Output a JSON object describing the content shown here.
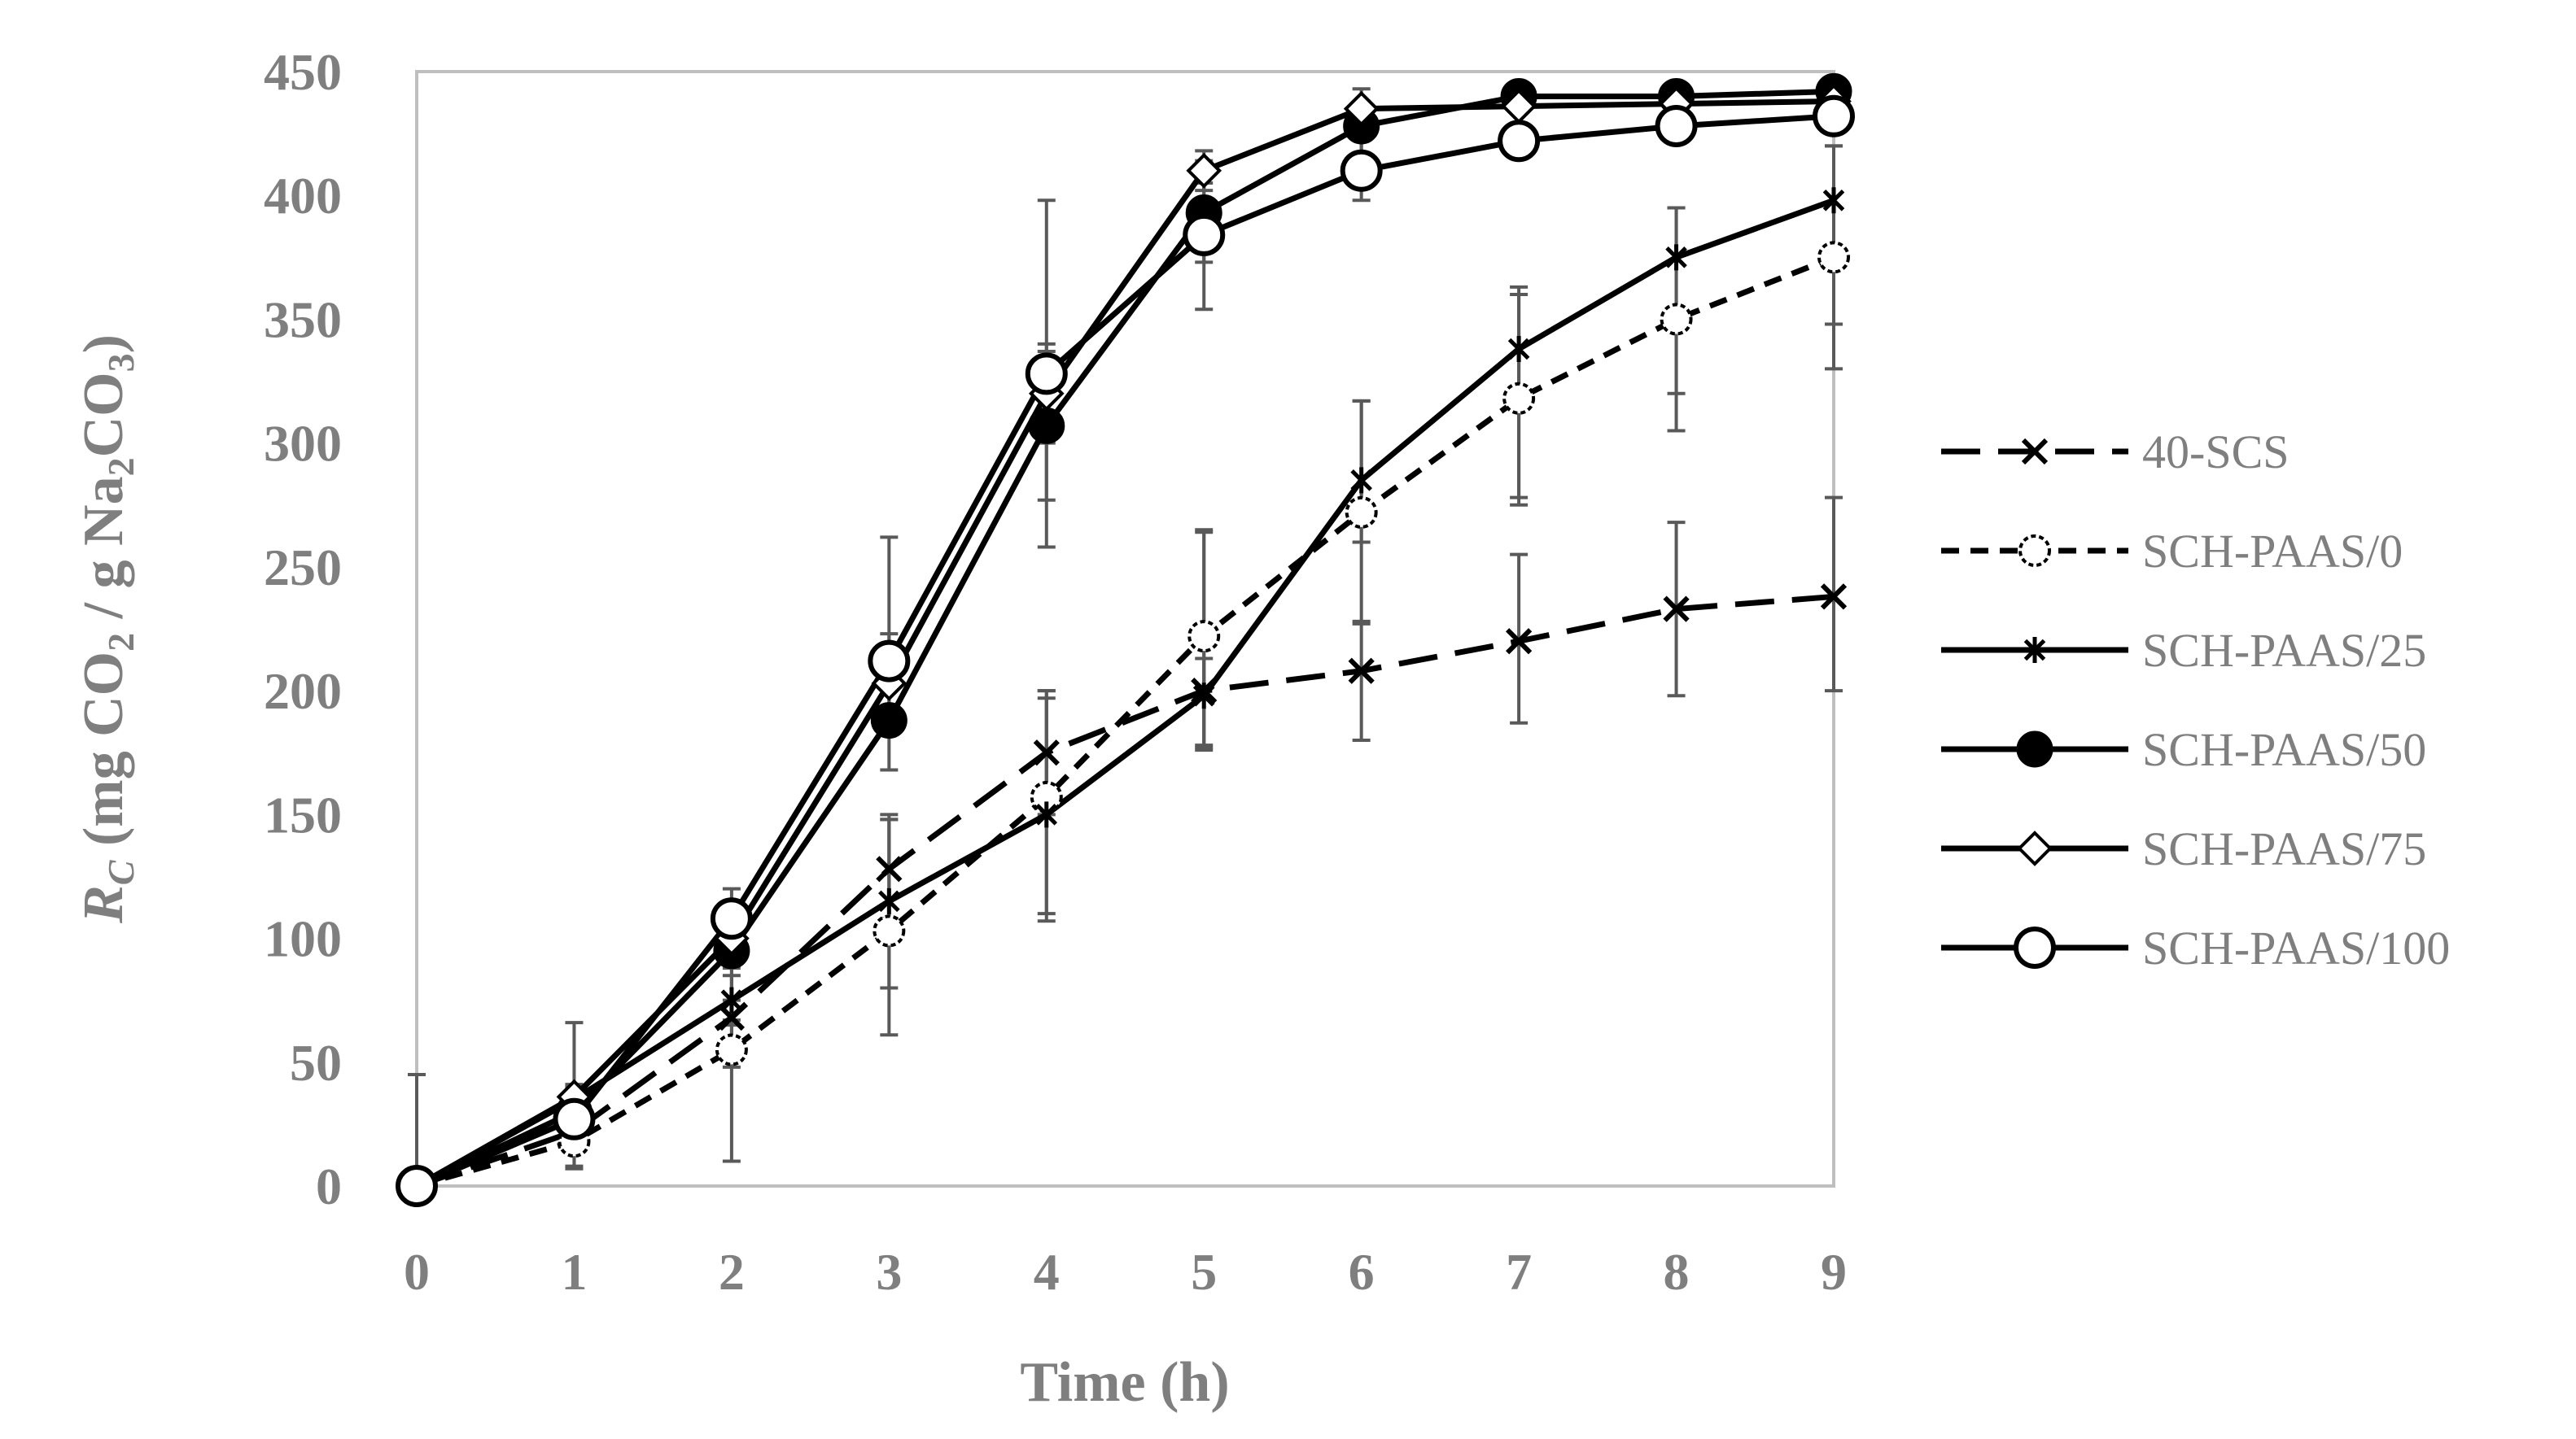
{
  "chart_data": {
    "type": "line",
    "title": "",
    "xlabel": "Time (h)",
    "ylabel": {
      "var": "R",
      "var_sub": "C",
      "pre": "(mg CO",
      "sub1": "2",
      "mid": " / g Na",
      "sub2": "2",
      "mid2": "CO",
      "sub3": "3",
      "post": ")"
    },
    "xlim": [
      0,
      9
    ],
    "ylim": [
      0,
      450
    ],
    "xticks": [
      "0",
      "1",
      "2",
      "3",
      "4",
      "5",
      "6",
      "7",
      "8",
      "9"
    ],
    "yticks": [
      "0",
      "50",
      "100",
      "150",
      "200",
      "250",
      "300",
      "350",
      "400",
      "450"
    ],
    "grid": false,
    "legend_position": "right",
    "x": [
      0,
      1,
      2,
      3,
      4,
      5,
      6,
      7,
      8,
      9
    ],
    "series": [
      {
        "name": "40-SCS",
        "marker": "x",
        "line": "long-dash",
        "values": [
          0,
          22,
          68,
          128,
          175,
          200,
          208,
          220,
          233,
          238
        ],
        "err_up": [
          45,
          8,
          20,
          20,
          25,
          65,
          20,
          35,
          35,
          40
        ],
        "err_down": [
          0,
          8,
          20,
          20,
          25,
          22,
          28,
          33,
          35,
          38
        ]
      },
      {
        "name": "SCH-PAAS/0",
        "marker": "open-circle",
        "line": "short-dash",
        "values": [
          0,
          18,
          55,
          103,
          157,
          222,
          272,
          318,
          350,
          375
        ],
        "err_up": [
          0,
          10,
          12,
          45,
          40,
          42,
          45,
          45,
          45,
          45
        ],
        "err_down": [
          0,
          10,
          45,
          42,
          50,
          45,
          45,
          43,
          45,
          45
        ]
      },
      {
        "name": "SCH-PAAS/25",
        "marker": "star",
        "line": "solid",
        "values": [
          0,
          35,
          75,
          115,
          150,
          198,
          285,
          338,
          375,
          398
        ],
        "err_up": [
          0,
          5,
          10,
          35,
          50,
          15,
          32,
          22,
          20,
          22
        ],
        "err_down": [
          0,
          5,
          10,
          35,
          40,
          22,
          25,
          60,
          55,
          50
        ]
      },
      {
        "name": "SCH-PAAS/50",
        "marker": "filled-circle",
        "line": "solid",
        "values": [
          0,
          30,
          95,
          188,
          307,
          393,
          428,
          440,
          440,
          442
        ],
        "err_up": [
          0,
          10,
          20,
          25,
          30,
          12,
          10,
          5,
          5,
          5
        ],
        "err_down": [
          0,
          10,
          20,
          20,
          30,
          20,
          12,
          5,
          5,
          5
        ]
      },
      {
        "name": "SCH-PAAS/75",
        "marker": "open-diamond",
        "line": "solid",
        "values": [
          0,
          36,
          100,
          203,
          320,
          410,
          435,
          436,
          437,
          438
        ],
        "err_up": [
          0,
          5,
          10,
          20,
          20,
          8,
          8,
          3,
          3,
          3
        ],
        "err_down": [
          0,
          5,
          10,
          20,
          20,
          8,
          8,
          3,
          3,
          3
        ]
      },
      {
        "name": "SCH-PAAS/100",
        "marker": "large-open-circle",
        "line": "solid",
        "values": [
          0,
          27,
          108,
          212,
          328,
          384,
          410,
          422,
          428,
          432
        ],
        "err_up": [
          0,
          39,
          12,
          50,
          70,
          30,
          25,
          6,
          6,
          6
        ],
        "err_down": [
          0,
          20,
          12,
          25,
          70,
          30,
          12,
          6,
          6,
          6
        ]
      }
    ]
  }
}
